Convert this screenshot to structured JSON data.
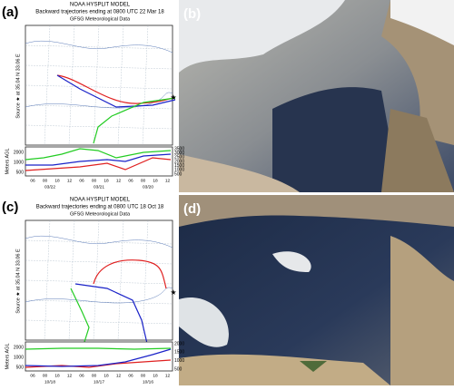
{
  "panels": [
    {
      "label": "(a)",
      "title": "NOAA HYSPLIT MODEL",
      "subtitle": "Backward trajectories ending at 0800 UTC 22 Mar 18",
      "source": "GFSG Meteorological Data",
      "side_label": "Source ★ at 35.04 N 33.06 E",
      "y_axis_label": "Meters AGL",
      "left_ticks": [
        "2000",
        "1000",
        "500"
      ],
      "right_ticks": [
        "3500",
        "3000",
        "2500",
        "2000",
        "1500",
        "1000",
        "500"
      ],
      "time_ticks": [
        "06",
        "00",
        "18",
        "12",
        "06",
        "00",
        "18",
        "12",
        "06",
        "00",
        "18",
        "12"
      ],
      "dates": [
        "03/22",
        "03/21",
        "03/20"
      ]
    },
    {
      "label": "(b)"
    },
    {
      "label": "(c)",
      "title": "NOAA HYSPLIT MODEL",
      "subtitle": "Backward trajectories ending at 0800 UTC 18 Oct 18",
      "source": "GFSG Meteorological Data",
      "side_label": "Source ★ at 35.04 N 33.06 E",
      "y_axis_label": "Meters AGL",
      "left_ticks": [
        "2000",
        "1000",
        "500"
      ],
      "right_ticks": [
        "2000",
        "1500",
        "1000",
        "500"
      ],
      "time_ticks": [
        "06",
        "00",
        "18",
        "12",
        "06",
        "00",
        "18",
        "12",
        "06",
        "00",
        "18",
        "12"
      ],
      "dates": [
        "10/18",
        "10/17",
        "10/16"
      ]
    },
    {
      "label": "(d)"
    }
  ]
}
